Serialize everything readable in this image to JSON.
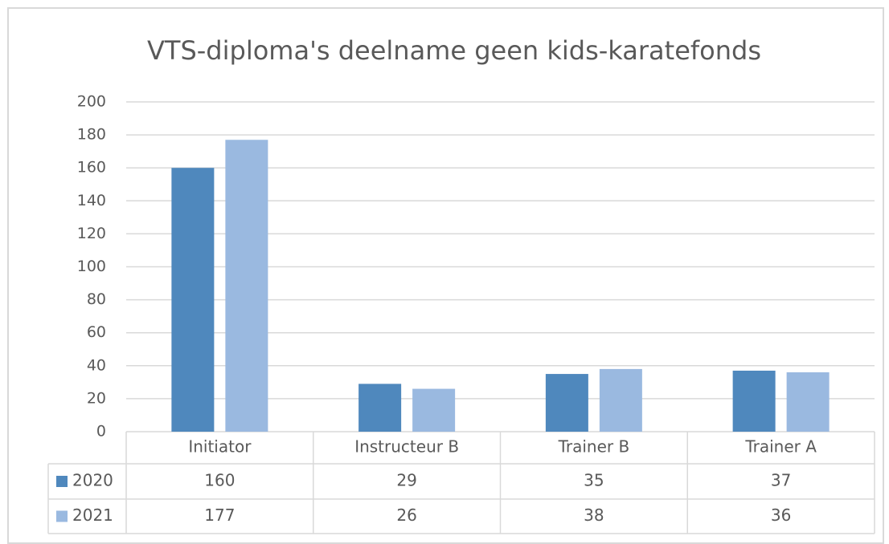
{
  "chart_data": {
    "type": "bar",
    "title": "VTS-diploma's deelname geen kids-karatefonds",
    "categories": [
      "Initiator",
      "Instructeur B",
      "Trainer B",
      "Trainer A"
    ],
    "series": [
      {
        "name": "2020",
        "color": "#4f88bd",
        "values": [
          160,
          29,
          35,
          37
        ]
      },
      {
        "name": "2021",
        "color": "#9ab9e0",
        "values": [
          177,
          26,
          38,
          36
        ]
      }
    ],
    "ylim": [
      0,
      200
    ],
    "yticks": [
      0,
      20,
      40,
      60,
      80,
      100,
      120,
      140,
      160,
      180,
      200
    ],
    "grid": true,
    "data_table": true
  }
}
